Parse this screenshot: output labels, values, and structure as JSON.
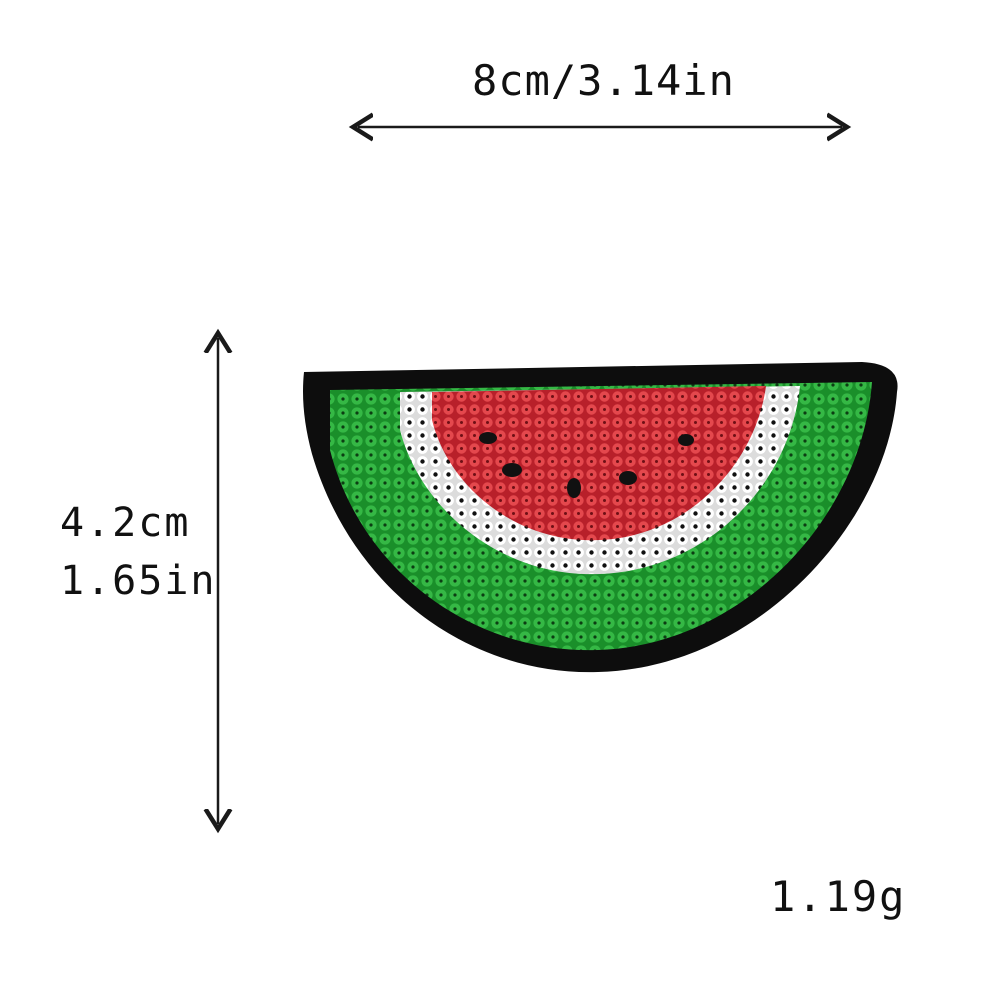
{
  "dimensions": {
    "width": "8cm/3.14in",
    "height_cm": "4.2cm",
    "height_in": "1.65in"
  },
  "weight": "1.19g",
  "colors": {
    "patch_border": "#0d0d0d",
    "rind_green": "#1e9a2e",
    "rind_white": "#f7f7f7",
    "flesh_red": "#d2343a",
    "seed": "#111111",
    "arrow": "#1a1a1a"
  }
}
